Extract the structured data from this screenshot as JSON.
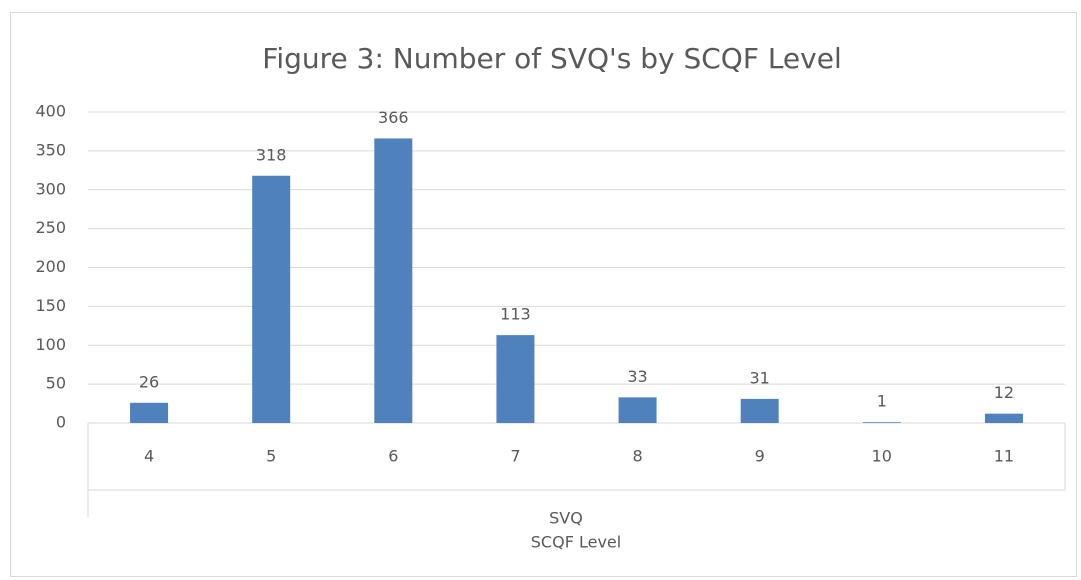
{
  "chart_data": {
    "type": "bar",
    "title": "Figure 3: Number of SVQ's by SCQF Level",
    "categories": [
      "4",
      "5",
      "6",
      "7",
      "8",
      "9",
      "10",
      "11"
    ],
    "values": [
      26,
      318,
      366,
      113,
      33,
      31,
      1,
      12
    ],
    "color": "#4f81bd",
    "ylim": [
      0,
      400
    ],
    "yticks": [
      0,
      50,
      100,
      150,
      200,
      250,
      300,
      350,
      400
    ],
    "grid": true,
    "x_group_label": "SVQ",
    "xlabel": "SCQF Level"
  }
}
